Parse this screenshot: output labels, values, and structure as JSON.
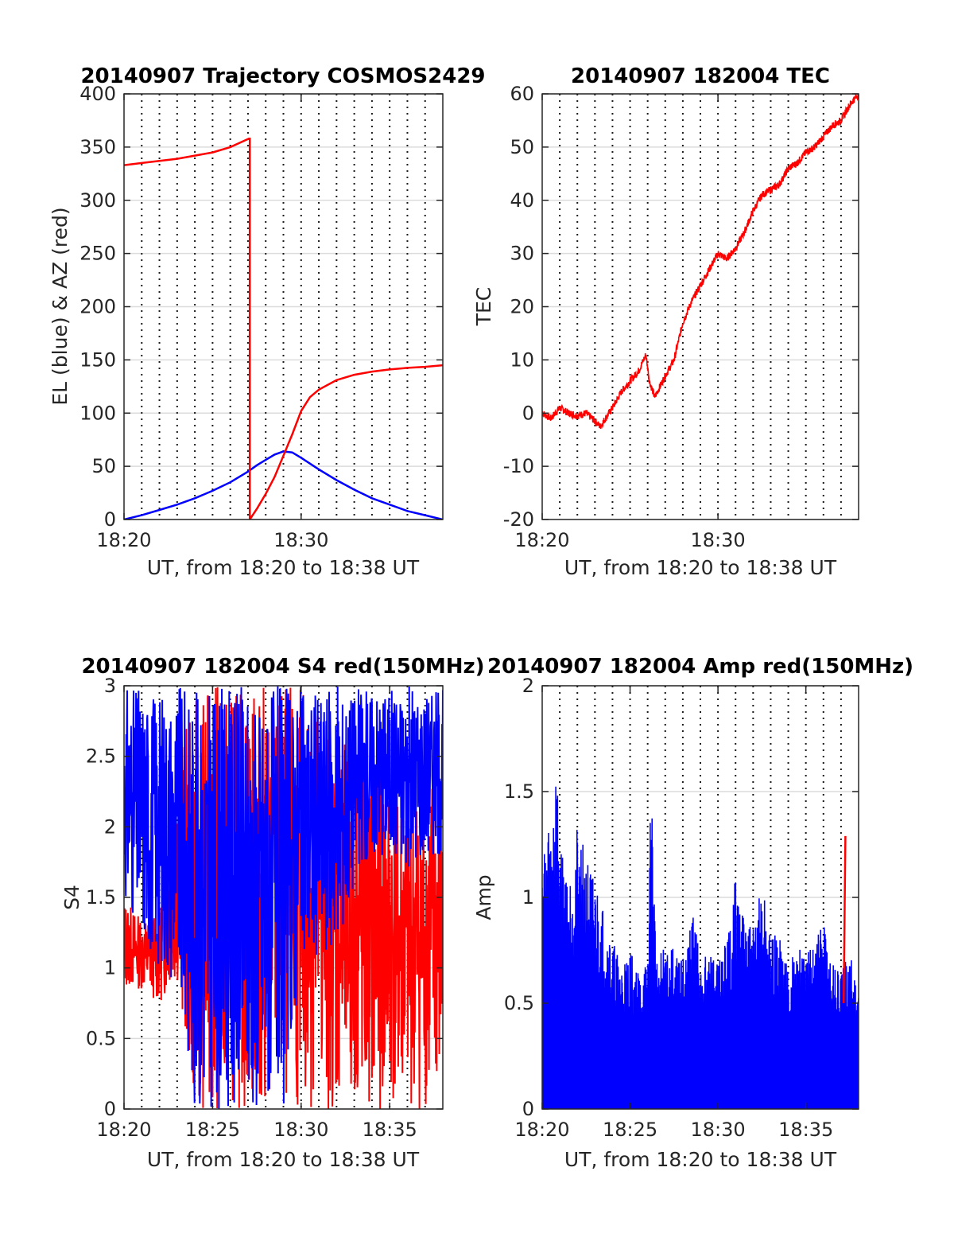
{
  "figure": {
    "background": "#ffffff"
  },
  "chart_data": [
    {
      "id": "traj",
      "type": "line",
      "title": "20140907 Trajectory COSMOS2429",
      "xlabel": "UT, from 18:20 to 18:38 UT",
      "ylabel": "EL (blue) & AZ (red)",
      "x_unit": "minutes after 18:20 UT",
      "xlim": [
        0,
        18
      ],
      "ylim": [
        0,
        400
      ],
      "xticks": [
        {
          "value": 0,
          "label": "18:20"
        },
        {
          "value": 10,
          "label": "18:30"
        }
      ],
      "yticks": [
        0,
        50,
        100,
        150,
        200,
        250,
        300,
        350,
        400
      ],
      "grid": "horizontal solid + vertical dotted every minute",
      "vdots": [
        1,
        2,
        3,
        4,
        5,
        6,
        7,
        8,
        9,
        10,
        11,
        12,
        13,
        14,
        15,
        16,
        17
      ],
      "series": [
        {
          "name": "EL",
          "color": "#0000ff",
          "x": [
            0,
            1,
            2,
            3,
            4,
            5,
            6,
            7,
            7.5,
            8,
            8.5,
            9,
            9.5,
            10,
            11,
            12,
            13,
            14,
            15,
            16,
            17,
            18
          ],
          "y": [
            0,
            4,
            9,
            14,
            20,
            27,
            35,
            45,
            51,
            56,
            61,
            64,
            63,
            58,
            47,
            37,
            28,
            20,
            14,
            8,
            4,
            0
          ]
        },
        {
          "name": "AZ",
          "color": "#ff0000",
          "x": [
            0,
            1,
            2,
            3,
            4,
            5,
            6,
            7.05,
            7.1,
            7.1,
            7.5,
            8,
            8.5,
            9,
            9.5,
            10,
            10.5,
            11,
            12,
            13,
            14,
            15,
            16,
            17,
            18
          ],
          "y": [
            333,
            335,
            337,
            339,
            342,
            345,
            350,
            358,
            358,
            0,
            10,
            24,
            40,
            60,
            80,
            102,
            115,
            122,
            131,
            136,
            139,
            141,
            142.5,
            143.5,
            145
          ]
        }
      ]
    },
    {
      "id": "tec",
      "type": "line",
      "title": "20140907 182004 TEC",
      "xlabel": "UT, from 18:20 to 18:38 UT",
      "ylabel": "TEC",
      "x_unit": "minutes after 18:20 UT",
      "xlim": [
        0,
        18
      ],
      "ylim": [
        -20,
        60
      ],
      "xticks": [
        {
          "value": 0,
          "label": "18:20"
        },
        {
          "value": 10,
          "label": "18:30"
        }
      ],
      "yticks": [
        -20,
        -10,
        0,
        10,
        20,
        30,
        40,
        50,
        60
      ],
      "grid": "horizontal solid + vertical dotted every minute",
      "vdots": [
        1,
        2,
        3,
        4,
        5,
        6,
        7,
        8,
        9,
        10,
        11,
        12,
        13,
        14,
        15,
        16,
        17
      ],
      "series": [
        {
          "name": "TEC",
          "color": "#ff0000",
          "x": [
            0,
            0.5,
            1,
            1.5,
            2,
            2.5,
            3,
            3.3,
            3.6,
            4,
            4.5,
            5,
            5.5,
            5.9,
            6.1,
            6.4,
            6.7,
            7,
            7.5,
            8,
            8.5,
            9,
            9.5,
            10,
            10.5,
            11,
            11.5,
            12,
            12.5,
            13,
            13.5,
            14,
            14.5,
            15,
            15.5,
            16,
            16.5,
            17,
            17.5,
            18
          ],
          "y": [
            0,
            -1,
            1,
            0,
            -0.5,
            0,
            -1.5,
            -2.5,
            -1,
            1,
            4,
            6,
            8,
            11,
            6,
            3,
            5,
            7,
            10,
            17,
            21,
            24,
            27,
            30,
            29,
            31,
            34,
            38,
            41,
            42,
            43,
            46,
            47,
            49,
            50,
            52,
            54,
            55,
            58,
            60
          ]
        }
      ]
    },
    {
      "id": "s4",
      "type": "line",
      "title": "20140907 182004 S4 red(150MHz)",
      "xlabel": "UT, from 18:20 to 18:38 UT",
      "ylabel": "S4",
      "x_unit": "minutes after 18:20 UT",
      "xlim": [
        0,
        18
      ],
      "ylim": [
        0,
        3
      ],
      "xticks": [
        {
          "value": 0,
          "label": "18:20"
        },
        {
          "value": 5,
          "label": "18:25"
        },
        {
          "value": 10,
          "label": "18:30"
        },
        {
          "value": 15,
          "label": "18:35"
        }
      ],
      "yticks": [
        0,
        0.5,
        1,
        1.5,
        2,
        2.5,
        3
      ],
      "grid": "horizontal solid + vertical dotted every minute",
      "vdots": [
        1,
        2,
        3,
        4,
        5,
        6,
        7,
        8,
        9,
        10,
        11,
        12,
        13,
        14,
        15,
        16,
        17
      ],
      "series": [
        {
          "name": "red",
          "color": "#ff0000",
          "x": [
            0,
            1,
            2,
            3,
            4,
            5,
            6,
            7,
            8,
            9,
            10,
            11,
            12,
            13,
            14,
            15,
            16,
            17,
            18
          ],
          "y_low": [
            0.85,
            0.85,
            0.75,
            0.9,
            0,
            0,
            0,
            0,
            0,
            0,
            0,
            0,
            0,
            0,
            0,
            0,
            0,
            0,
            0
          ],
          "y_high": [
            1.5,
            1.35,
            1.4,
            2.5,
            2.9,
            3,
            3,
            3,
            3,
            3,
            3,
            3,
            2.6,
            2.6,
            2.4,
            2.4,
            2.3,
            2.4,
            2.4
          ]
        },
        {
          "name": "blue",
          "color": "#0000ff",
          "x": [
            0,
            1,
            2,
            3,
            4,
            5,
            6,
            7,
            8,
            9,
            10,
            11,
            12,
            13,
            14,
            15,
            16,
            17,
            18
          ],
          "y_low": [
            1.5,
            1.2,
            1.0,
            0.9,
            0,
            0,
            0,
            0,
            0,
            0,
            1.0,
            1.1,
            1.1,
            1.6,
            1.8,
            1.8,
            1.7,
            1.8,
            1.8
          ],
          "y_high": [
            3,
            3,
            3,
            3,
            3,
            3,
            3,
            3,
            3,
            3,
            3,
            3,
            3,
            3,
            3,
            3,
            3,
            3,
            3
          ]
        }
      ]
    },
    {
      "id": "amp",
      "type": "line",
      "title": "20140907 182004 Amp red(150MHz)",
      "xlabel": "UT, from 18:20 to 18:38 UT",
      "ylabel": "Amp",
      "x_unit": "minutes after 18:20 UT",
      "xlim": [
        0,
        18
      ],
      "ylim": [
        0,
        2
      ],
      "xticks": [
        {
          "value": 0,
          "label": "18:20"
        },
        {
          "value": 5,
          "label": "18:25"
        },
        {
          "value": 10,
          "label": "18:30"
        },
        {
          "value": 15,
          "label": "18:35"
        }
      ],
      "yticks": [
        0,
        0.5,
        1,
        1.5,
        2
      ],
      "grid": "horizontal solid + vertical dotted every minute",
      "vdots": [
        1,
        2,
        3,
        4,
        5,
        6,
        7,
        8,
        9,
        10,
        11,
        12,
        13,
        14,
        15,
        16,
        17
      ],
      "series": [
        {
          "name": "blue",
          "color": "#0000ff",
          "x": [
            0,
            0.5,
            0.8,
            1,
            1.5,
            2,
            2.5,
            3,
            3.5,
            4,
            4.5,
            5,
            5.5,
            6,
            6.2,
            6.5,
            7,
            7.5,
            8,
            8.5,
            9,
            9.5,
            10,
            10.5,
            11,
            11.5,
            12,
            12.5,
            13,
            13.5,
            14,
            14.5,
            15,
            15.5,
            16,
            16.5,
            17,
            17.5,
            18
          ],
          "y": [
            1.3,
            1.4,
            1.68,
            1.3,
            1.1,
            1.35,
            1.2,
            1.1,
            0.95,
            0.8,
            0.7,
            0.75,
            0.65,
            0.7,
            1.62,
            0.7,
            0.8,
            0.75,
            0.7,
            0.95,
            0.75,
            0.75,
            0.7,
            0.8,
            1.1,
            0.9,
            0.85,
            1.08,
            0.8,
            0.85,
            0.7,
            0.8,
            0.7,
            0.85,
            0.9,
            0.7,
            0.65,
            0.75,
            0.6
          ]
        },
        {
          "name": "red",
          "color": "#ff0000",
          "x": [
            17.15,
            17.25
          ],
          "y": [
            0.5,
            1.29
          ]
        }
      ]
    }
  ]
}
